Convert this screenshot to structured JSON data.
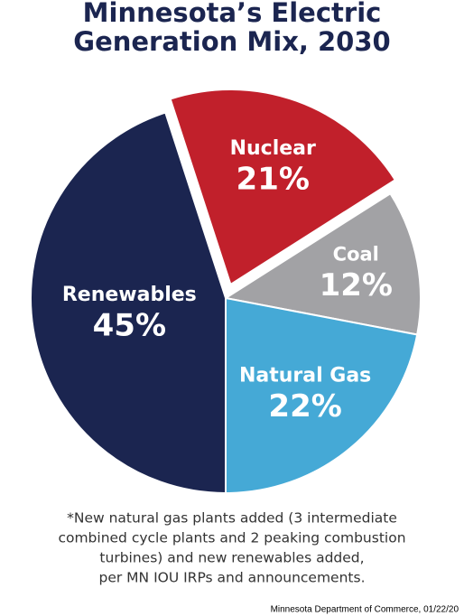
{
  "chart_data": {
    "type": "pie",
    "title": [
      "Minnesota’s Electric",
      "Generation Mix, 2030"
    ],
    "categories": [
      "Nuclear",
      "Coal",
      "Natural Gas",
      "Renewables"
    ],
    "values": [
      21,
      12,
      22,
      45
    ],
    "value_labels": [
      "21%",
      "12%",
      "22%",
      "45%"
    ],
    "colors": [
      "#c1202b",
      "#a2a2a5",
      "#45a9d6",
      "#1b2550"
    ],
    "explode": [
      true,
      false,
      false,
      false
    ],
    "footnote": [
      "*New natural gas plants added (3 intermediate",
      "combined cycle plants and 2 peaking combustion",
      "turbines) and new renewables added,",
      "per MN IOU IRPs and announcements."
    ],
    "source": "Minnesota Department of Commerce, 01/22/20"
  }
}
